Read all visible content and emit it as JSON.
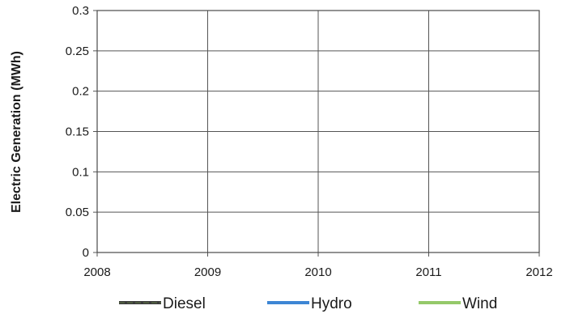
{
  "chart_data": {
    "type": "line",
    "title": "",
    "xlabel": "",
    "ylabel": "Electric Generation (MWh)",
    "x_ticks": [
      "2008",
      "2009",
      "2010",
      "2011",
      "2012"
    ],
    "x_range": [
      2008,
      2012
    ],
    "y_ticks": [
      "0",
      "0.05",
      "0.1",
      "0.15",
      "0.2",
      "0.25",
      "0.3"
    ],
    "ylim": [
      0,
      0.3
    ],
    "grid": true,
    "legend_position": "bottom",
    "series": [
      {
        "name": "Diesel",
        "color": "#4d5a3f",
        "x": [],
        "y": []
      },
      {
        "name": "Hydro",
        "color": "#3d86d4",
        "x": [],
        "y": []
      },
      {
        "name": "Wind",
        "color": "#95c96a",
        "x": [],
        "y": []
      }
    ]
  }
}
